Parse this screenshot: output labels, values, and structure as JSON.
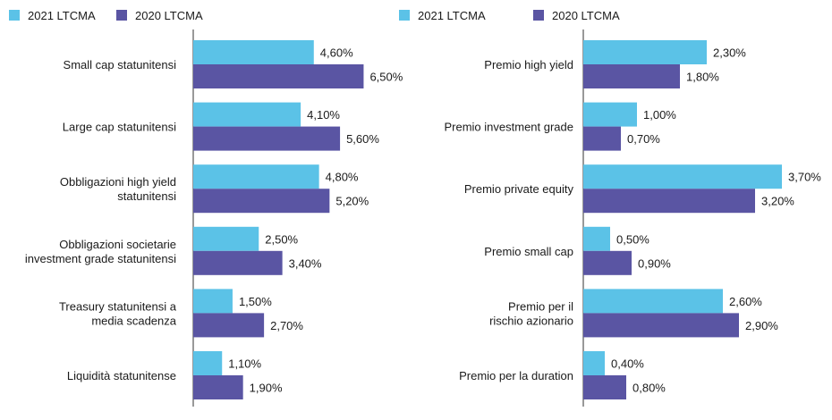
{
  "chart_data": [
    {
      "type": "bar",
      "orientation": "horizontal",
      "legend_position": "top-left",
      "value_format": "percent_comma_2dp",
      "categories": [
        "Small cap statunitensi",
        "Large cap statunitensi",
        "Obbligazioni high yield statunitensi",
        "Obbligazioni societarie investment grade statunitensi",
        "Treasury statunitensi a media scadenza",
        "Liquidità statunitense"
      ],
      "category_lines": [
        [
          "Small cap statunitensi"
        ],
        [
          "Large cap statunitensi"
        ],
        [
          "Obbligazioni high yield",
          "statunitensi"
        ],
        [
          "Obbligazioni societarie",
          "investment grade statunitensi"
        ],
        [
          "Treasury statunitensi a",
          "media scadenza"
        ],
        [
          "Liquidità statunitense"
        ]
      ],
      "series": [
        {
          "name": "2021 LTCMA",
          "color": "#5bc2e7",
          "values": [
            4.6,
            4.1,
            4.8,
            2.5,
            1.5,
            1.1
          ],
          "labels": [
            "4,60%",
            "4,10%",
            "4,80%",
            "2,50%",
            "1,50%",
            "1,10%"
          ]
        },
        {
          "name": "2020 LTCMA",
          "color": "#5a55a3",
          "values": [
            6.5,
            5.6,
            5.2,
            3.4,
            2.7,
            1.9
          ],
          "labels": [
            "6,50%",
            "5,60%",
            "5,20%",
            "3,40%",
            "2,70%",
            "1,90%"
          ]
        }
      ],
      "xlim": [
        0,
        7.5
      ]
    },
    {
      "type": "bar",
      "orientation": "horizontal",
      "legend_position": "top-left",
      "value_format": "percent_comma_2dp",
      "categories": [
        "Premio high yield",
        "Premio investment grade",
        "Premio private equity",
        "Premio small cap",
        "Premio per il rischio azionario",
        "Premio per la duration"
      ],
      "category_lines": [
        [
          "Premio high yield"
        ],
        [
          "Premio investment grade"
        ],
        [
          "Premio private equity"
        ],
        [
          "Premio small cap"
        ],
        [
          "Premio per il",
          "rischio azionario"
        ],
        [
          "Premio per la duration"
        ]
      ],
      "series": [
        {
          "name": "2021 LTCMA",
          "color": "#5bc2e7",
          "values": [
            2.3,
            1.0,
            3.7,
            0.5,
            2.6,
            0.4
          ],
          "labels": [
            "2,30%",
            "1,00%",
            "3,70%",
            "0,50%",
            "2,60%",
            "0,40%"
          ]
        },
        {
          "name": "2020 LTCMA",
          "color": "#5a55a3",
          "values": [
            1.8,
            0.7,
            3.2,
            0.9,
            2.9,
            0.8
          ],
          "labels": [
            "1,80%",
            "0,70%",
            "3,20%",
            "0,90%",
            "2,90%",
            "0,80%"
          ]
        }
      ],
      "xlim": [
        0,
        4.3
      ]
    }
  ]
}
